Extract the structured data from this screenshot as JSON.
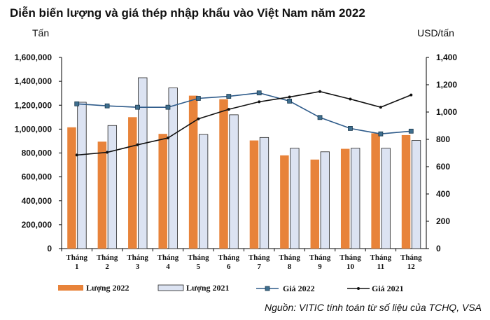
{
  "chart_data": {
    "type": "bar",
    "title": "Diễn biến lượng và giá thép nhập khẩu vào Việt Nam năm 2022",
    "ylabel_left": "Tấn",
    "ylabel_right": "USD/tấn",
    "categories": [
      {
        "line1": "Tháng",
        "line2": "1"
      },
      {
        "line1": "Tháng",
        "line2": "2"
      },
      {
        "line1": "Tháng",
        "line2": "3"
      },
      {
        "line1": "Tháng",
        "line2": "4"
      },
      {
        "line1": "Tháng",
        "line2": "5"
      },
      {
        "line1": "Tháng",
        "line2": "6"
      },
      {
        "line1": "Tháng",
        "line2": "7"
      },
      {
        "line1": "Tháng",
        "line2": "8"
      },
      {
        "line1": "Tháng",
        "line2": "9"
      },
      {
        "line1": "Tháng",
        "line2": "10"
      },
      {
        "line1": "Tháng",
        "line2": "11"
      },
      {
        "line1": "Tháng",
        "line2": "12"
      }
    ],
    "ylim_left": [
      0,
      1600000
    ],
    "ylim_right": [
      0,
      1400
    ],
    "yticks_left": [
      "0",
      "200,000",
      "400,000",
      "600,000",
      "800,000",
      "1,000,000",
      "1,200,000",
      "1,400,000",
      "1,600,000"
    ],
    "yticks_right": [
      "0",
      "200",
      "400",
      "600",
      "800",
      "1,000",
      "1,200",
      "1,400"
    ],
    "bar_series": [
      {
        "name": "Lượng 2022",
        "color": "#E8833A",
        "values": [
          1015000,
          895000,
          1100000,
          960000,
          1280000,
          1250000,
          905000,
          780000,
          745000,
          835000,
          965000,
          950000
        ]
      },
      {
        "name": "Lượng 2021",
        "color": "#DCE3F2",
        "values": [
          1225000,
          1030000,
          1430000,
          1345000,
          955000,
          1120000,
          930000,
          840000,
          810000,
          840000,
          840000,
          905000
        ]
      }
    ],
    "line_series": [
      {
        "name": "Giá 2022",
        "color": "#2E5B8A",
        "values": [
          1060,
          1045,
          1035,
          1035,
          1100,
          1115,
          1140,
          1080,
          960,
          880,
          840,
          860
        ]
      },
      {
        "name": "Giá 2021",
        "color": "#111111",
        "values": [
          685,
          705,
          760,
          810,
          950,
          1020,
          1075,
          1110,
          1150,
          1095,
          1035,
          1125
        ]
      }
    ],
    "legend_position": "bottom",
    "source": "Nguồn: VITIC tính toán từ số liệu của TCHQ, VSA"
  }
}
